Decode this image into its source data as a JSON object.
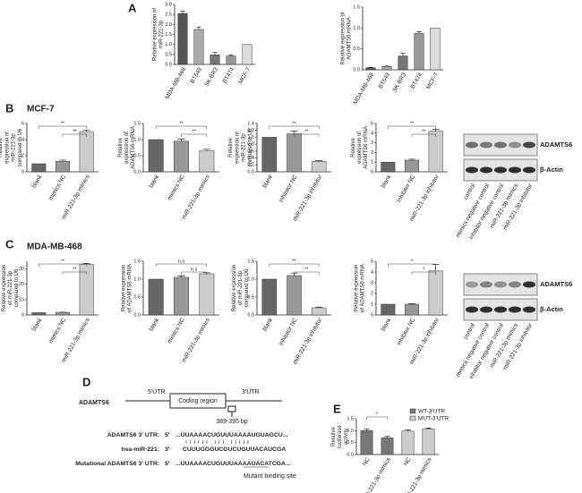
{
  "panels": [
    "A",
    "B",
    "C",
    "D",
    "E"
  ],
  "cell_lines": [
    "MCF-7",
    "MDA-MB-468"
  ],
  "blot": {
    "proteins": [
      "ADAMTS6",
      "β-Actin"
    ],
    "lanes": [
      "control",
      "mimics negative control",
      "inhibitor negative control",
      "miR-221-3p mimics",
      "miR-221-3p inhibitor"
    ]
  },
  "diagram": {
    "gene": "ADAMTS6",
    "utr5": "5'UTR",
    "coding": "Coding region",
    "utr3": "3'UTR",
    "site": "389-395 bp",
    "rows": [
      {
        "label": "ADAMTS6 3' UTR:",
        "end": "5'",
        "seq": "...UUAAAACUGUUUAAAAUGUAGCU..."
      },
      {
        "label": "hsa-miR-221:",
        "end": "3'",
        "seq": "CUUUGGGUCGUCUGUUACAUCGA"
      },
      {
        "label": "Mutational ADAMTS6 3' UTR:",
        "end": "5'",
        "seq": "...UUAAAACUGUUUAAAAUACATCGA..."
      }
    ],
    "note": "Mutant binding site"
  },
  "chart_data": [
    {
      "type": "bar",
      "ylabel": "Relative expression of miR-221-3p",
      "categories": [
        "MDA-MB-468",
        "BT549",
        "SK-BR3",
        "BT474",
        "MCF-7"
      ],
      "values": [
        2.55,
        1.75,
        0.48,
        0.42,
        1.0
      ],
      "errors": [
        0.12,
        0.12,
        0.12,
        0.06,
        0
      ],
      "colors": [
        "#555555",
        "#aaaaaa",
        "#777777",
        "#999999",
        "#dddddd"
      ],
      "ylim": [
        0,
        3
      ],
      "yticks": [
        {
          "value": 0,
          "label": "0.0"
        },
        0.5,
        {
          "value": 1,
          "label": "1.0"
        },
        1.5,
        {
          "value": 2,
          "label": "2.0"
        },
        2.5,
        {
          "value": 3,
          "label": "3.0"
        }
      ]
    },
    {
      "type": "bar",
      "ylabel": "Relative expression of ADAMTS6 mRNA",
      "categories": [
        "MDA-MB-468",
        "BT549",
        "SK-BR3",
        "BT474",
        "MCF-7"
      ],
      "values": [
        0.05,
        0.08,
        0.33,
        0.87,
        1.0
      ],
      "errors": [
        0.01,
        0.01,
        0.07,
        0.04,
        0
      ],
      "colors": [
        "#555555",
        "#aaaaaa",
        "#777777",
        "#999999",
        "#dddddd"
      ],
      "ylim": [
        0,
        1.5
      ],
      "yticks": [
        {
          "value": 0,
          "label": "0.0"
        },
        0.5,
        {
          "value": 1,
          "label": "1.0"
        },
        1.5
      ]
    },
    {
      "type": "bar",
      "ylabel": "Relative expression of miR-221-3p compared to U6",
      "categories": [
        "blank",
        "mimics NC",
        "miR-221-3p mimics"
      ],
      "values": [
        1,
        1.3,
        5.0
      ],
      "errors": [
        0,
        0.15,
        0.2
      ],
      "colors": [
        "#666666",
        "#999999",
        "#cccccc"
      ],
      "ylim": [
        0,
        6
      ],
      "yticks": [
        0,
        2,
        4,
        6
      ],
      "annotations": [
        "**",
        "**"
      ]
    },
    {
      "type": "bar",
      "ylabel": "Relative expression of ADAMTS6 mRNA",
      "categories": [
        "blank",
        "mimics NC",
        "miR-221-3p mimics"
      ],
      "values": [
        1,
        0.95,
        0.65
      ],
      "errors": [
        0,
        0.07,
        0.05
      ],
      "colors": [
        "#666666",
        "#999999",
        "#cccccc"
      ],
      "ylim": [
        0,
        1.5
      ],
      "yticks": [
        {
          "value": 0,
          "label": "0.0"
        },
        0.5,
        {
          "value": 1,
          "label": "1.0"
        },
        1.5
      ],
      "annotations": [
        "**",
        "**"
      ]
    },
    {
      "type": "bar",
      "ylabel": "Relative expression of miR-221-3p compared to U6",
      "categories": [
        "blank",
        "Inhibitor NC",
        "miR-221-3p inhibitor"
      ],
      "values": [
        1,
        1.1,
        0.3
      ],
      "errors": [
        0,
        0.08,
        0.02
      ],
      "colors": [
        "#666666",
        "#999999",
        "#cccccc"
      ],
      "ylim": [
        0,
        1.4
      ],
      "yticks": [
        {
          "value": 0,
          "label": "0.0"
        },
        0.2,
        0.4,
        0.6,
        0.8,
        {
          "value": 1,
          "label": "1.0"
        },
        1.2,
        1.4
      ],
      "annotations": [
        "**",
        "**"
      ]
    },
    {
      "type": "bar",
      "ylabel": "Relative expression of ADAMTS6 mRNA",
      "categories": [
        "blank",
        "Inhibitor NC",
        "miR-221-3p inhibitor"
      ],
      "values": [
        1,
        1.2,
        4.2
      ],
      "errors": [
        0,
        0.1,
        0.2
      ],
      "colors": [
        "#666666",
        "#999999",
        "#cccccc"
      ],
      "ylim": [
        0,
        5
      ],
      "yticks": [
        0,
        1,
        2,
        3,
        4,
        5
      ],
      "annotations": [
        "**",
        "**"
      ]
    },
    {
      "type": "bar",
      "ylabel": "Relative expression of miR-221-3p compared to U6",
      "categories": [
        "blank",
        "mimics NC",
        "miR-221-3p mimics"
      ],
      "values": [
        1.5,
        1.7,
        33
      ],
      "errors": [
        0,
        0.1,
        0.6
      ],
      "colors": [
        "#666666",
        "#999999",
        "#cccccc"
      ],
      "ylim": [
        0,
        35
      ],
      "yticks": [
        0,
        10,
        20,
        30
      ],
      "annotations": [
        "**",
        "**"
      ]
    },
    {
      "type": "bar",
      "ylabel": "Relative expression of ADAMTS6 mRNA",
      "categories": [
        "blank",
        "mimics NC",
        "miR-221-3p mimics"
      ],
      "values": [
        1,
        1.05,
        1.15
      ],
      "errors": [
        0,
        0.04,
        0.03
      ],
      "colors": [
        "#666666",
        "#999999",
        "#cccccc"
      ],
      "ylim": [
        0,
        1.5
      ],
      "yticks": [
        {
          "value": 0,
          "label": "0.0"
        },
        0.5,
        {
          "value": 1,
          "label": "1.0"
        },
        1.5
      ],
      "annotations": [
        "n.s",
        "n.s"
      ]
    },
    {
      "type": "bar",
      "ylabel": "Relative expression of miR-221-3p compared to U6",
      "categories": [
        "blank",
        "Inhibitor NC",
        "miR-221-3p inhibitor"
      ],
      "values": [
        1,
        1.1,
        0.2
      ],
      "errors": [
        0,
        0.07,
        0.02
      ],
      "colors": [
        "#666666",
        "#999999",
        "#cccccc"
      ],
      "ylim": [
        0,
        1.5
      ],
      "yticks": [
        {
          "value": 0,
          "label": "0.0"
        },
        0.5,
        {
          "value": 1,
          "label": "1.0"
        },
        1.5
      ],
      "annotations": [
        "**",
        "**"
      ]
    },
    {
      "type": "bar",
      "ylabel": "Relative expression of ADAMTS6 mRNA",
      "categories": [
        "blank",
        "inhibitor NC",
        "miR-221-3p inhibitor"
      ],
      "values": [
        1,
        1.0,
        4.1
      ],
      "errors": [
        0,
        0.05,
        0.6
      ],
      "colors": [
        "#666666",
        "#999999",
        "#cccccc"
      ],
      "ylim": [
        0,
        5
      ],
      "yticks": [
        0,
        1,
        2,
        3,
        4,
        5
      ],
      "annotations": [
        "*",
        "*"
      ]
    },
    {
      "type": "bar",
      "ylabel": "Relative luciferase activity",
      "categories": [
        "NC",
        "miR-221-3p mimics",
        "NC",
        "miR-221-3p mimics"
      ],
      "series": [
        {
          "name": "WT-3'UTR",
          "color": "#777777",
          "values": [
            1.0,
            0.7,
            null,
            null
          ],
          "errors": [
            0.06,
            0.06,
            null,
            null
          ]
        },
        {
          "name": "MUT-3'UTR",
          "color": "#cccccc",
          "values": [
            null,
            null,
            0.98,
            1.07
          ],
          "errors": [
            null,
            null,
            0.05,
            0.04
          ]
        }
      ],
      "ylim": [
        0,
        1.5
      ],
      "yticks": [
        {
          "value": 0,
          "label": "0.0"
        },
        0.5,
        {
          "value": 1,
          "label": "1.0"
        },
        1.5
      ],
      "annotations": [
        "*"
      ]
    }
  ]
}
